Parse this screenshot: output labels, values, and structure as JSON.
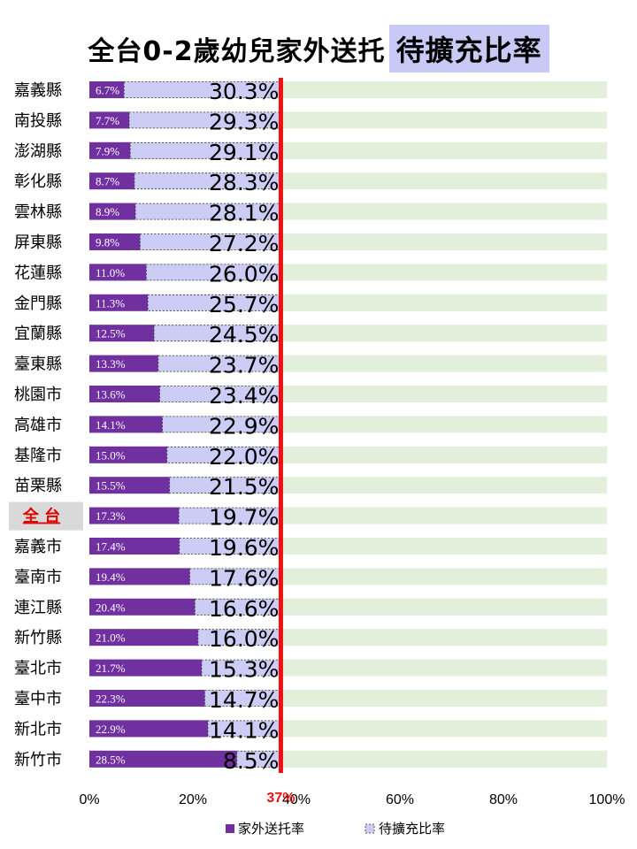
{
  "title": {
    "main": "全台0-2歲幼兒家外送托",
    "highlight": "待擴充比率"
  },
  "chart_data": {
    "type": "bar",
    "stacked": true,
    "orientation": "horizontal",
    "title": "全台0-2歲幼兒家外送托待擴充比率",
    "xlim": [
      0,
      100
    ],
    "x_ticks": [
      "0%",
      "20%",
      "40%",
      "60%",
      "80%",
      "100%"
    ],
    "reference_line": {
      "value": 37,
      "label": "37%",
      "color": "#ee1111"
    },
    "highlight_category": "全 台",
    "categories": [
      "嘉義縣",
      "南投縣",
      "澎湖縣",
      "彰化縣",
      "雲林縣",
      "屏東縣",
      "花蓮縣",
      "金門縣",
      "宜蘭縣",
      "臺東縣",
      "桃園市",
      "高雄市",
      "基隆市",
      "苗栗縣",
      "全 台",
      "嘉義市",
      "臺南市",
      "連江縣",
      "新竹縣",
      "臺北市",
      "臺中市",
      "新北市",
      "新竹市"
    ],
    "series": [
      {
        "name": "家外送托率",
        "color": "#7030a0",
        "values": [
          6.7,
          7.7,
          7.9,
          8.7,
          8.9,
          9.8,
          11.0,
          11.3,
          12.5,
          13.3,
          13.6,
          14.1,
          15.0,
          15.5,
          17.3,
          17.4,
          19.4,
          20.4,
          21.0,
          21.7,
          22.3,
          22.9,
          28.5
        ],
        "labels": [
          "6.7%",
          "7.7%",
          "7.9%",
          "8.7%",
          "8.9%",
          "9.8%",
          "11.0%",
          "11.3%",
          "12.5%",
          "13.3%",
          "13.6%",
          "14.1%",
          "15.0%",
          "15.5%",
          "17.3%",
          "17.4%",
          "19.4%",
          "20.4%",
          "21.0%",
          "21.7%",
          "22.3%",
          "22.9%",
          "28.5%"
        ]
      },
      {
        "name": "待擴充比率",
        "color": "#ccccf5",
        "values": [
          30.3,
          29.3,
          29.1,
          28.3,
          28.1,
          27.2,
          26.0,
          25.7,
          24.5,
          23.7,
          23.4,
          22.9,
          22.0,
          21.5,
          19.7,
          19.6,
          17.6,
          16.6,
          16.0,
          15.3,
          14.7,
          14.1,
          8.5
        ],
        "labels": [
          "30.3%",
          "29.3%",
          "29.1%",
          "28.3%",
          "28.1%",
          "27.2%",
          "26.0%",
          "25.7%",
          "24.5%",
          "23.7%",
          "23.4%",
          "22.9%",
          "22.0%",
          "21.5%",
          "19.7%",
          "19.6%",
          "17.6%",
          "16.6%",
          "16.0%",
          "15.3%",
          "14.7%",
          "14.1%",
          "8.5%"
        ]
      }
    ],
    "background_band_color": "#e2efda",
    "legend_position": "bottom"
  }
}
